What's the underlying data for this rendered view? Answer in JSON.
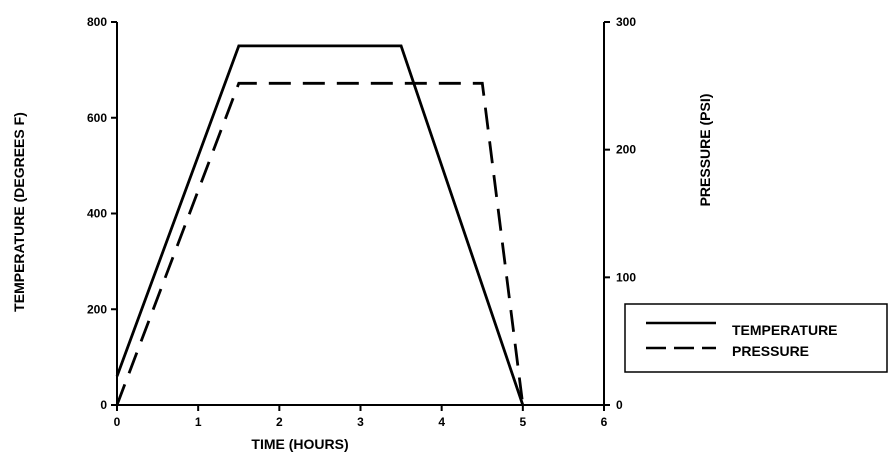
{
  "chart_data": {
    "type": "line",
    "xlabel": "TIME (HOURS)",
    "ylabel_left": "TEMPERATURE (DEGREES F)",
    "ylabel_right": "PRESSURE (PSI)",
    "xlim": [
      0,
      6
    ],
    "ylim_left": [
      0,
      800
    ],
    "ylim_right": [
      0,
      300
    ],
    "x_ticks": [
      "0",
      "1",
      "2",
      "3",
      "4",
      "5",
      "6"
    ],
    "y_left_ticks": [
      "0",
      "200",
      "400",
      "600",
      "800"
    ],
    "y_right_ticks": [
      "0",
      "100",
      "200",
      "300"
    ],
    "grid": false,
    "legend_position": "right",
    "series": [
      {
        "name": "TEMPERATURE",
        "axis": "left",
        "style": "solid",
        "color": "#000000",
        "points": [
          [
            0,
            60
          ],
          [
            1.5,
            750
          ],
          [
            3.5,
            750
          ],
          [
            5,
            0
          ]
        ]
      },
      {
        "name": "PRESSURE",
        "axis": "right",
        "style": "dashed",
        "color": "#000000",
        "points": [
          [
            0,
            0
          ],
          [
            1.5,
            252
          ],
          [
            4.5,
            252
          ],
          [
            5,
            0
          ]
        ]
      }
    ]
  }
}
